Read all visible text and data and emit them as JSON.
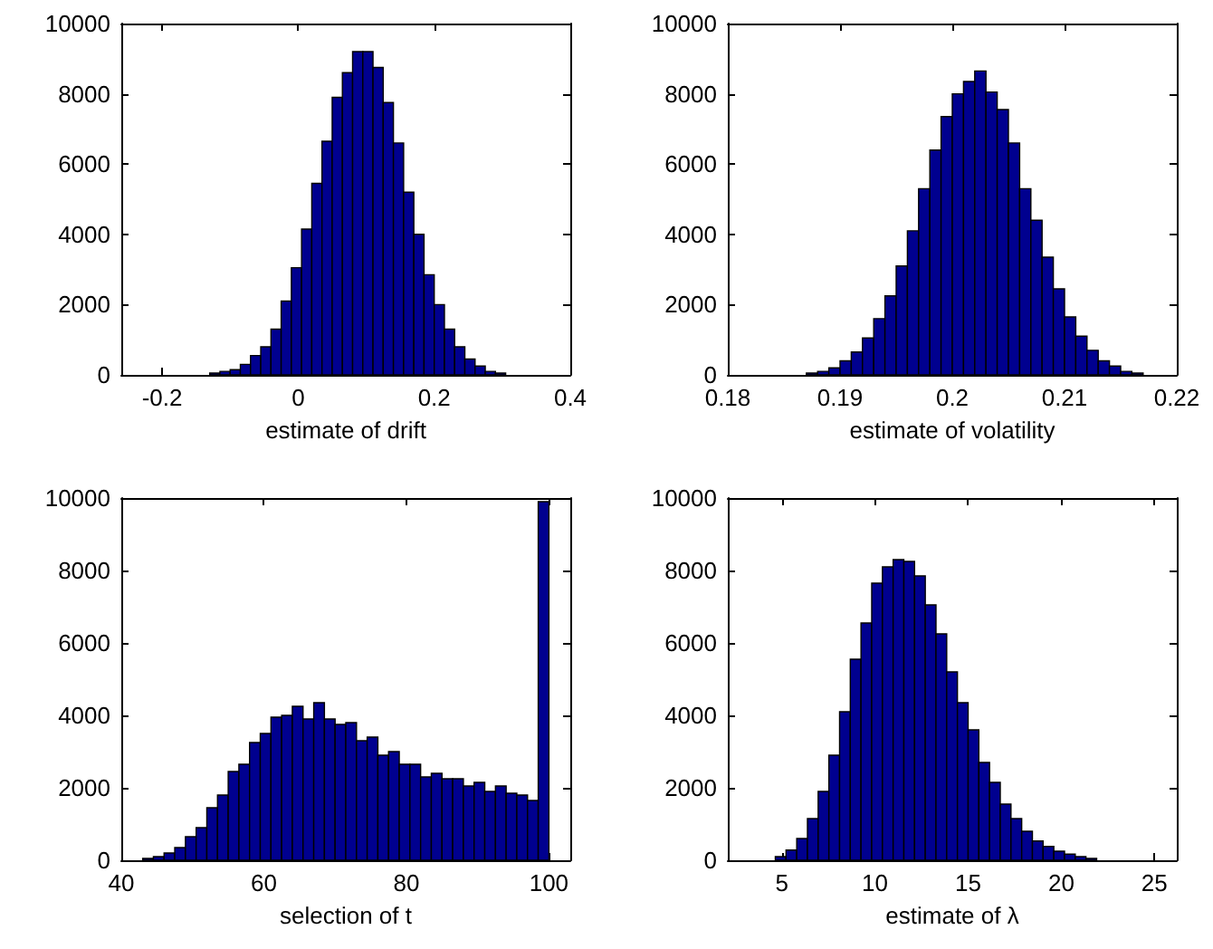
{
  "chart_data": [
    {
      "type": "histogram",
      "xlabel": "estimate of drift",
      "color": "#00008f",
      "xlim": [
        -0.26,
        0.4
      ],
      "xticks": [
        -0.2,
        0,
        0.2,
        0.4
      ],
      "ylim": [
        0,
        10000
      ],
      "yticks": [
        0,
        2000,
        4000,
        6000,
        8000,
        10000
      ],
      "bins": [
        -0.25,
        -0.235,
        -0.22,
        -0.205,
        -0.19,
        -0.175,
        -0.16,
        -0.145,
        -0.13,
        -0.115,
        -0.1,
        -0.085,
        -0.07,
        -0.055,
        -0.04,
        -0.025,
        -0.01,
        0.005,
        0.02,
        0.035,
        0.05,
        0.065,
        0.08,
        0.095,
        0.11,
        0.125,
        0.14,
        0.155,
        0.17,
        0.185,
        0.2,
        0.215,
        0.23,
        0.245,
        0.26,
        0.275,
        0.29,
        0.305,
        0.32,
        0.335,
        0.35,
        0.365,
        0.38,
        0.395
      ],
      "values": [
        0,
        0,
        0,
        0,
        0,
        0,
        0,
        0,
        50,
        100,
        150,
        300,
        550,
        800,
        1300,
        2100,
        3050,
        4150,
        5450,
        6650,
        7900,
        8600,
        9200,
        9200,
        8750,
        7750,
        6600,
        5200,
        4000,
        2850,
        2000,
        1300,
        800,
        450,
        250,
        100,
        50,
        0,
        0,
        0,
        0,
        0,
        0
      ]
    },
    {
      "type": "histogram",
      "xlabel": "estimate of volatility",
      "color": "#00008f",
      "xlim": [
        0.18,
        0.22
      ],
      "xticks": [
        0.18,
        0.19,
        0.2,
        0.21,
        0.22
      ],
      "ylim": [
        0,
        10000
      ],
      "yticks": [
        0,
        2000,
        4000,
        6000,
        8000,
        10000
      ],
      "bins": [
        0.18,
        0.181,
        0.182,
        0.183,
        0.184,
        0.185,
        0.186,
        0.187,
        0.188,
        0.189,
        0.19,
        0.191,
        0.192,
        0.193,
        0.194,
        0.195,
        0.196,
        0.197,
        0.198,
        0.199,
        0.2,
        0.201,
        0.202,
        0.203,
        0.204,
        0.205,
        0.206,
        0.207,
        0.208,
        0.209,
        0.21,
        0.211,
        0.212,
        0.213,
        0.214,
        0.215,
        0.216,
        0.217,
        0.218,
        0.219,
        0.22
      ],
      "values": [
        0,
        0,
        0,
        0,
        0,
        0,
        0,
        50,
        100,
        200,
        400,
        650,
        1050,
        1600,
        2250,
        3100,
        4100,
        5300,
        6400,
        7350,
        8000,
        8350,
        8650,
        8050,
        7550,
        6600,
        5300,
        4400,
        3350,
        2450,
        1650,
        1100,
        700,
        400,
        250,
        100,
        50,
        0,
        0,
        0
      ]
    },
    {
      "type": "histogram",
      "xlabel": "selection of t",
      "color": "#00008f",
      "xlim": [
        40,
        103
      ],
      "xticks": [
        40,
        60,
        80,
        100
      ],
      "ylim": [
        0,
        10000
      ],
      "yticks": [
        0,
        2000,
        4000,
        6000,
        8000,
        10000
      ],
      "bins": [
        40,
        41.5,
        43,
        44.5,
        46,
        47.5,
        49,
        50.5,
        52,
        53.5,
        55,
        56.5,
        58,
        59.5,
        61,
        62.5,
        64,
        65.5,
        67,
        68.5,
        70,
        71.5,
        73,
        74.5,
        76,
        77.5,
        79,
        80.5,
        82,
        83.5,
        85,
        86.5,
        88,
        89.5,
        91,
        92.5,
        94,
        95.5,
        97,
        98.5,
        100
      ],
      "values": [
        0,
        0,
        50,
        100,
        200,
        350,
        650,
        900,
        1450,
        1800,
        2450,
        2650,
        3250,
        3500,
        3950,
        4000,
        4250,
        3900,
        4350,
        3900,
        3750,
        3800,
        3300,
        3400,
        2900,
        3000,
        2650,
        2650,
        2300,
        2400,
        2250,
        2250,
        2050,
        2150,
        1900,
        2050,
        1850,
        1800,
        1650,
        9900
      ]
    },
    {
      "type": "histogram",
      "xlabel": "estimate of λ",
      "color": "#00008f",
      "xlim": [
        2.1,
        26.2
      ],
      "xticks": [
        5,
        10,
        15,
        20,
        25
      ],
      "ylim": [
        0,
        10000
      ],
      "yticks": [
        0,
        2000,
        4000,
        6000,
        8000,
        10000
      ],
      "bins": [
        3.5,
        4.075,
        4.65,
        5.225,
        5.8,
        6.375,
        6.95,
        7.525,
        8.1,
        8.675,
        9.25,
        9.825,
        10.4,
        10.975,
        11.55,
        12.125,
        12.7,
        13.275,
        13.85,
        14.425,
        15,
        15.575,
        16.15,
        16.725,
        17.3,
        17.875,
        18.45,
        19.025,
        19.6,
        20.175,
        20.75,
        21.325,
        21.9,
        22.475,
        23.05,
        23.625,
        24.2,
        24.775,
        25.35,
        25.925
      ],
      "values": [
        0,
        0,
        100,
        280,
        600,
        1150,
        1900,
        2900,
        4100,
        5550,
        6550,
        7650,
        8100,
        8300,
        8250,
        7850,
        7050,
        6250,
        5200,
        4350,
        3600,
        2700,
        2150,
        1550,
        1150,
        800,
        530,
        380,
        250,
        170,
        100,
        50,
        0,
        0,
        0,
        0,
        0,
        0,
        0
      ]
    }
  ]
}
